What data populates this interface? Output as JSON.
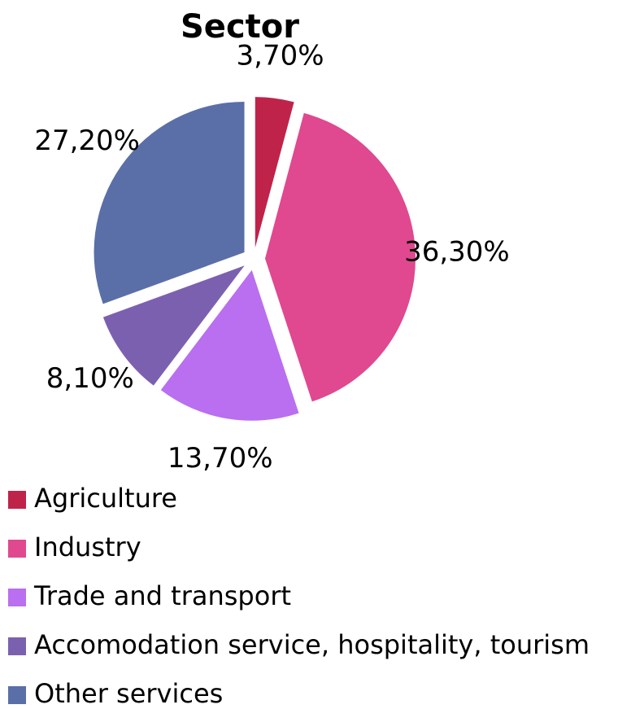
{
  "chart_data": {
    "type": "pie",
    "title": "Sector",
    "categories": [
      "Agriculture",
      "Industry",
      "Trade and transport",
      "Accomodation service, hospitality, tourism",
      "Other services"
    ],
    "values": [
      3.7,
      36.3,
      13.7,
      8.1,
      27.2
    ],
    "value_labels": [
      "3,70%",
      "36,30%",
      "13,70%",
      "8,10%",
      "27,20%"
    ],
    "colors": [
      "#c0234a",
      "#e0488f",
      "#b96ff0",
      "#7c60b0",
      "#5a6fa8"
    ],
    "legend": "bottom-left"
  }
}
